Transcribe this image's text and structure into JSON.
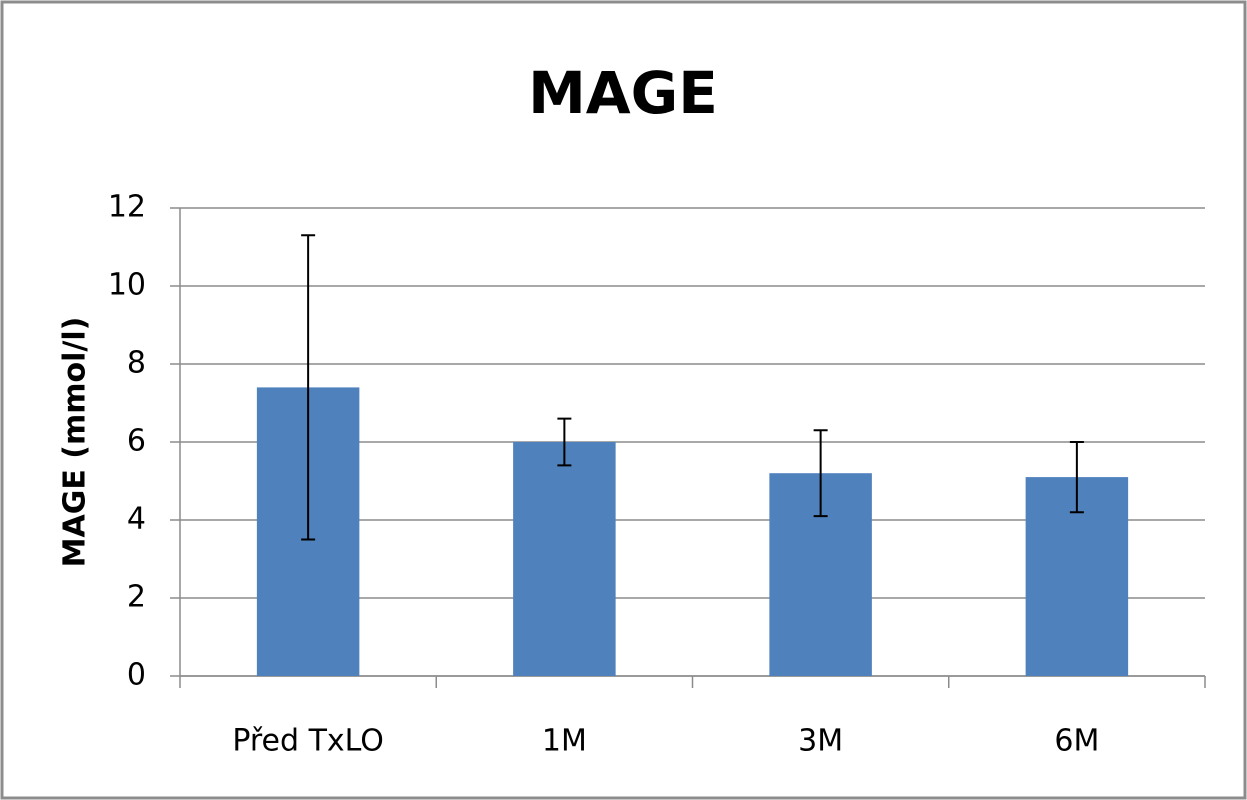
{
  "chart_data": {
    "type": "bar",
    "title": "MAGE",
    "y_label": "MAGE (mmol/l)",
    "categories": [
      "Před TxLO",
      "1M",
      "3M",
      "6M"
    ],
    "values": [
      7.4,
      6.0,
      5.2,
      5.1
    ],
    "errors": [
      3.9,
      0.6,
      1.1,
      0.9
    ],
    "color": "#4f81bd",
    "ylim": [
      0,
      12
    ],
    "yticks": [
      0,
      2,
      4,
      6,
      8,
      10,
      12
    ],
    "grid": true
  }
}
